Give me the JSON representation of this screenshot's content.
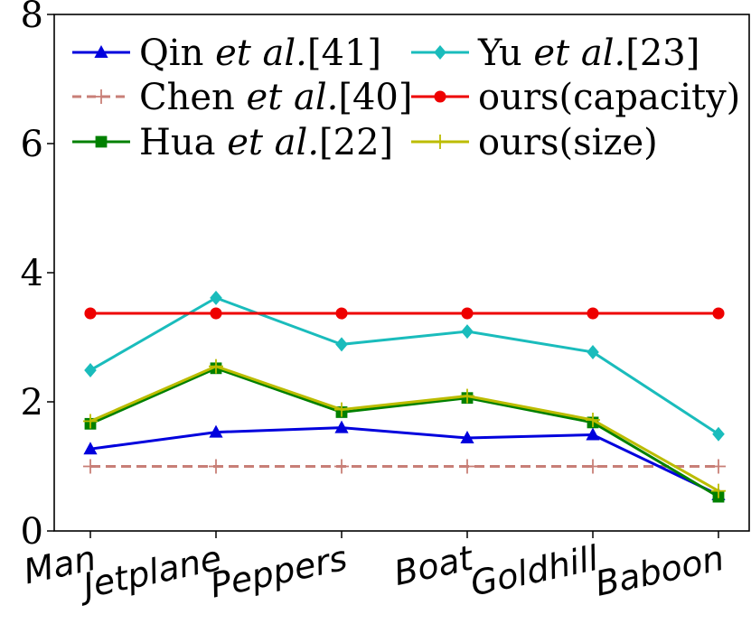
{
  "chart_data": {
    "type": "line",
    "categories": [
      "Man",
      "Jetplane",
      "Peppers",
      "Boat",
      "Goldhill",
      "Baboon"
    ],
    "ylim": [
      0,
      8
    ],
    "yticks": [
      0,
      2,
      4,
      6,
      8
    ],
    "grid": false,
    "legend_placement": "top",
    "series": [
      {
        "name": "Qin et al.[41]",
        "label_main": "Qin ",
        "label_italic": "et al.",
        "label_ref": "[41]",
        "color": "#0000dd",
        "marker": "triangle",
        "dash": "solid",
        "values": [
          1.27,
          1.53,
          1.6,
          1.44,
          1.49,
          0.56
        ]
      },
      {
        "name": "Chen et al.[40]",
        "label_main": "Chen ",
        "label_italic": "et al.",
        "label_ref": "[40]",
        "color": "#c87f77",
        "marker": "plus",
        "dash": "dashed",
        "values": [
          1.0,
          1.0,
          1.0,
          1.0,
          1.0,
          1.0
        ]
      },
      {
        "name": "Hua et al.[22]",
        "label_main": "Hua ",
        "label_italic": "et al.",
        "label_ref": "[22]",
        "color": "#008000",
        "marker": "square",
        "dash": "solid",
        "values": [
          1.66,
          2.52,
          1.84,
          2.06,
          1.68,
          0.53
        ]
      },
      {
        "name": "Yu et al.[23]",
        "label_main": "Yu ",
        "label_italic": "et al.",
        "label_ref": "[23]",
        "color": "#1abcbc",
        "marker": "diamond",
        "dash": "solid",
        "values": [
          2.49,
          3.61,
          2.89,
          3.09,
          2.77,
          1.5
        ]
      },
      {
        "name": "ours(capacity)",
        "label_main": "ours(capacity)",
        "label_italic": "",
        "label_ref": "",
        "color": "#ee0000",
        "marker": "circle",
        "dash": "solid",
        "values": [
          3.37,
          3.37,
          3.37,
          3.37,
          3.37,
          3.37
        ]
      },
      {
        "name": "ours(size)",
        "label_main": "ours(size)",
        "label_italic": "",
        "label_ref": "",
        "color": "#bcbc00",
        "marker": "plus",
        "dash": "solid",
        "values": [
          1.7,
          2.55,
          1.88,
          2.09,
          1.72,
          0.62
        ]
      }
    ]
  }
}
